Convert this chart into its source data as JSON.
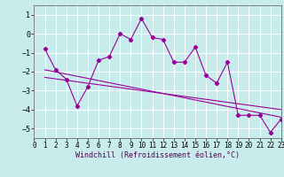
{
  "xlabel": "Windchill (Refroidissement éolien,°C)",
  "bg_color": "#c8ecec",
  "line_color": "#990099",
  "grid_color": "#ffffff",
  "xlim": [
    0,
    23
  ],
  "ylim": [
    -5.5,
    1.5
  ],
  "xticks": [
    0,
    1,
    2,
    3,
    4,
    5,
    6,
    7,
    8,
    9,
    10,
    11,
    12,
    13,
    14,
    15,
    16,
    17,
    18,
    19,
    20,
    21,
    22,
    23
  ],
  "yticks": [
    -5,
    -4,
    -3,
    -2,
    -1,
    0,
    1
  ],
  "zigzag_x": [
    1,
    2,
    3,
    4,
    5,
    6,
    7,
    8,
    9,
    10,
    11,
    12,
    13,
    14,
    15,
    16,
    17,
    18,
    19,
    20,
    21,
    22,
    23
  ],
  "zigzag_y": [
    -0.8,
    -1.9,
    -2.4,
    -3.8,
    -2.8,
    -1.4,
    -1.2,
    0.0,
    -0.3,
    0.8,
    -0.2,
    -0.3,
    -1.5,
    -1.5,
    -0.7,
    -2.2,
    -2.6,
    -1.5,
    -4.3,
    -4.3,
    -4.3,
    -5.2,
    -4.5
  ],
  "trend1_x": [
    1,
    23
  ],
  "trend1_y": [
    -1.9,
    -4.4
  ],
  "trend2_x": [
    1,
    23
  ],
  "trend2_y": [
    -2.3,
    -4.0
  ]
}
